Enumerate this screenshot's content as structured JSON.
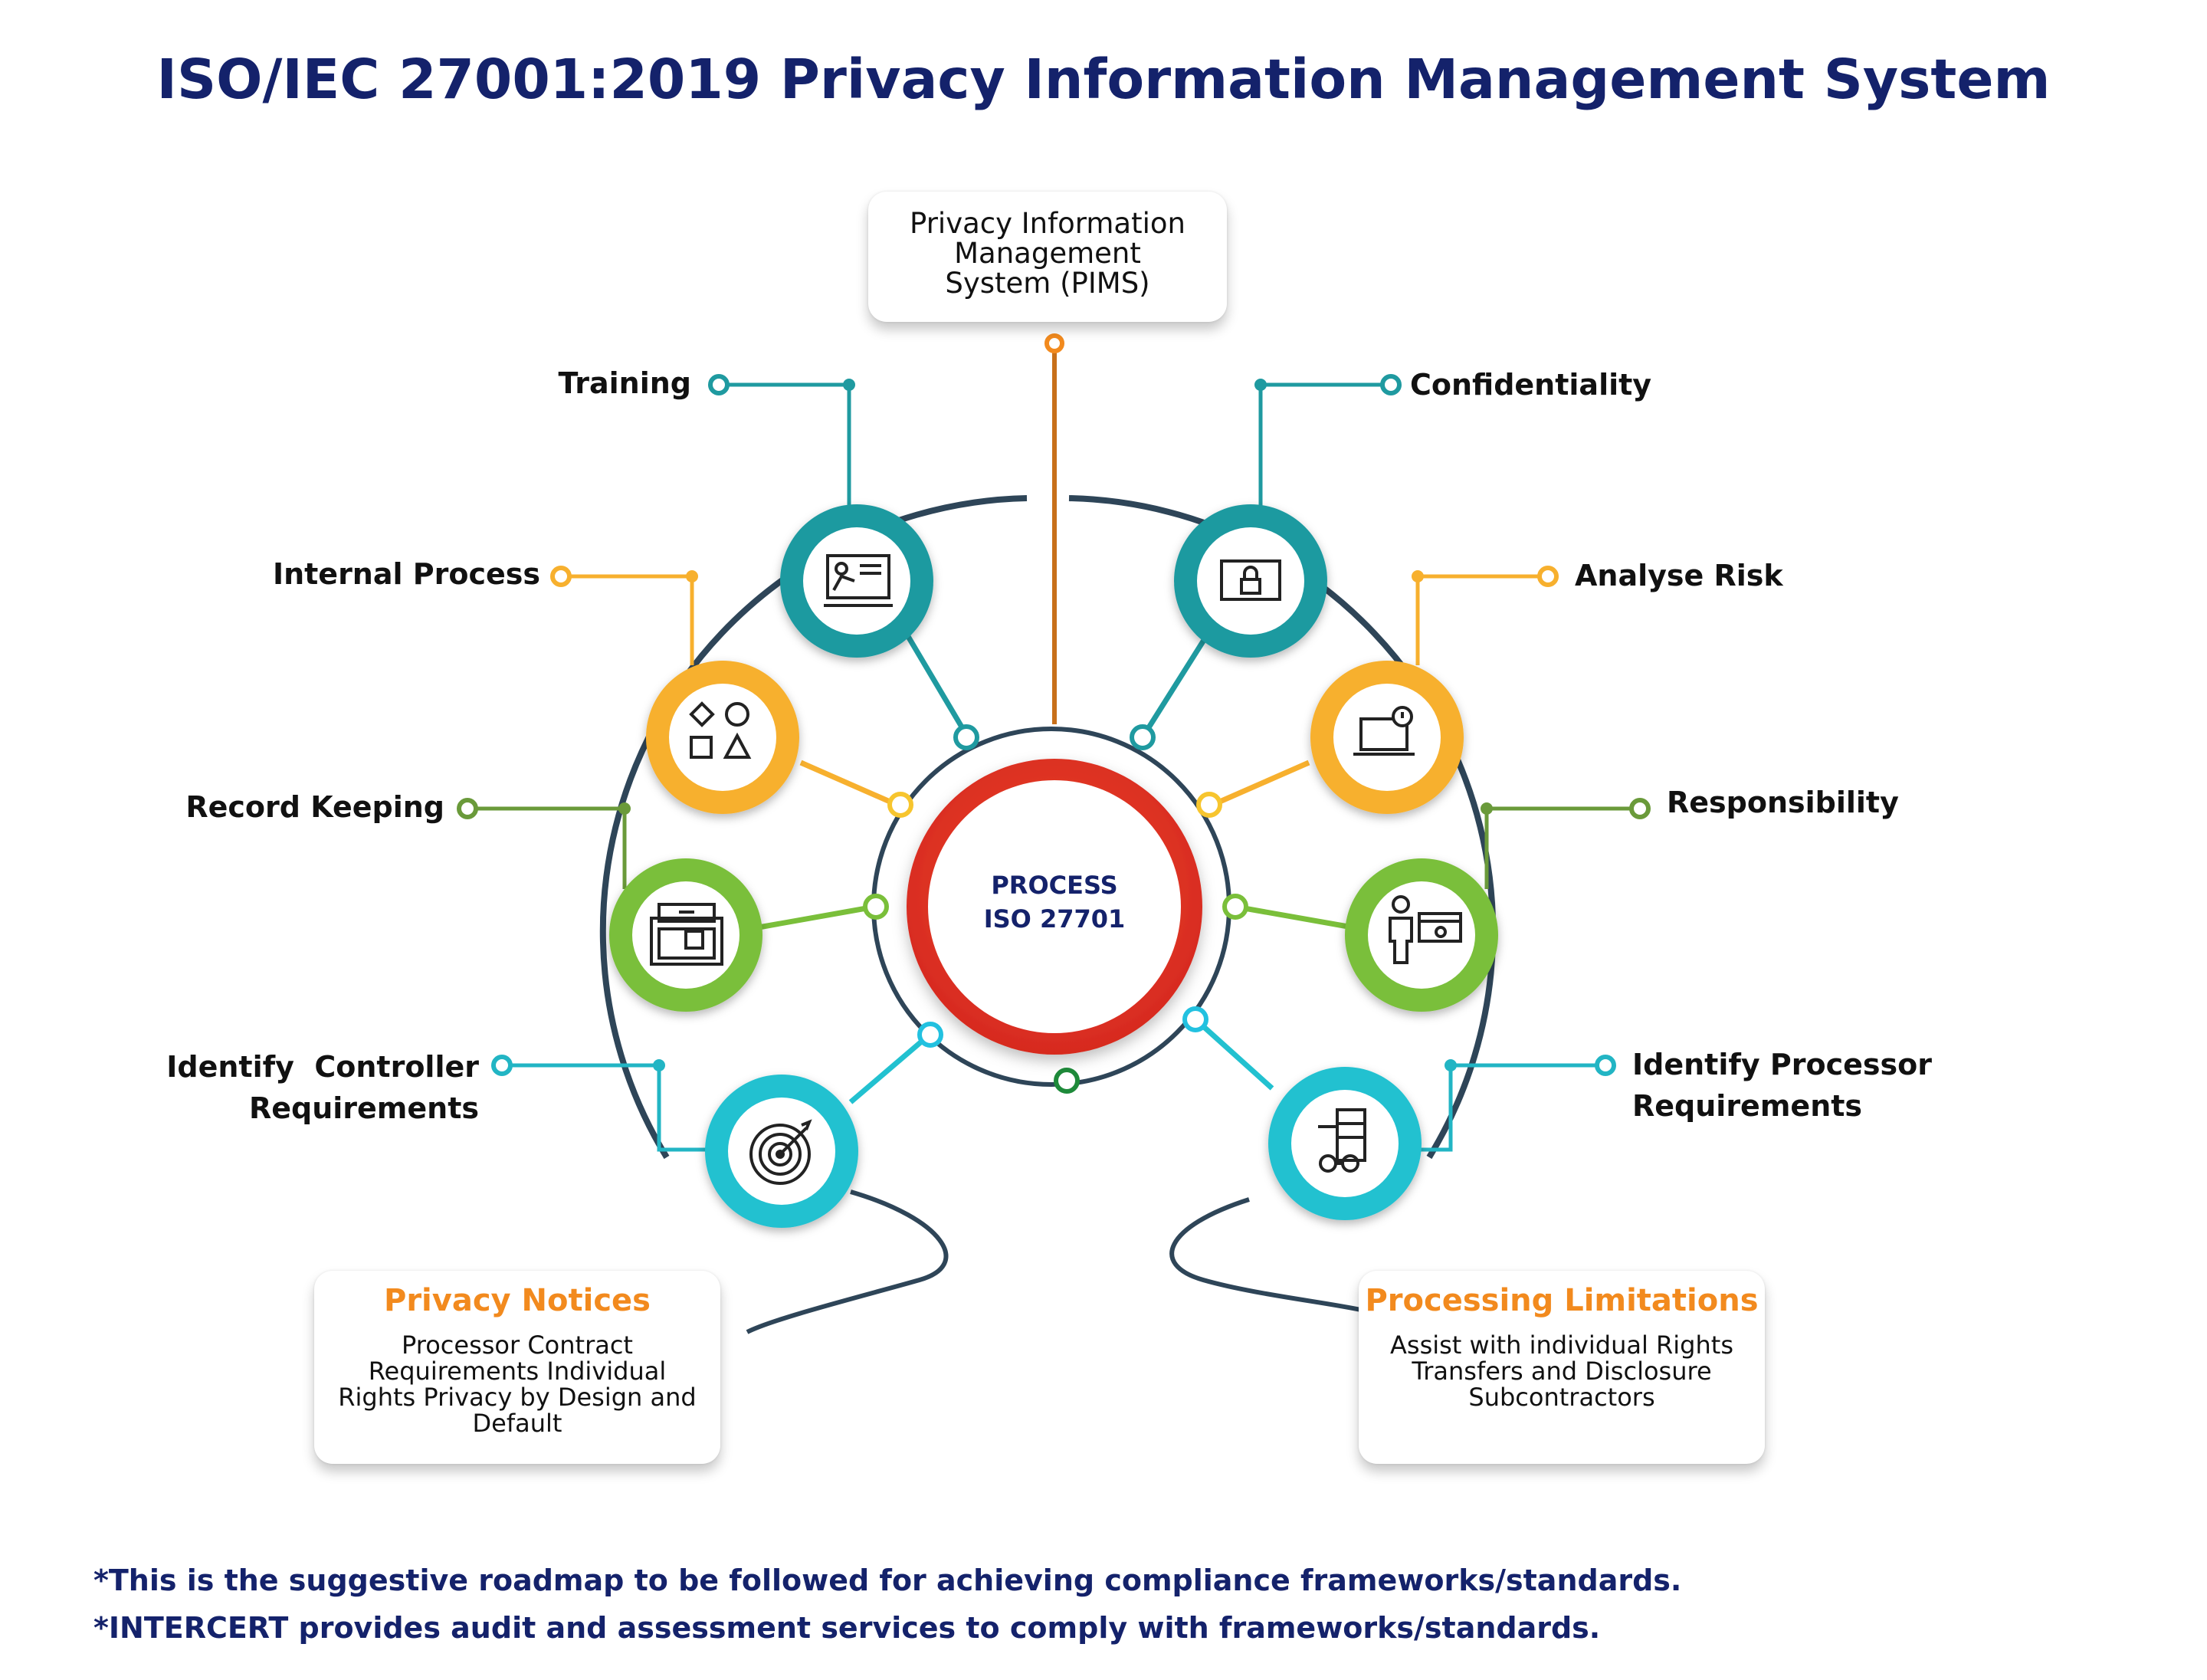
{
  "title": "ISO/IEC 27001:2019 Privacy Information Management System",
  "center": {
    "line1": "PROCESS",
    "line2": "ISO 27701"
  },
  "top_card": {
    "line1": "Privacy Information",
    "line2": "Management",
    "line3": "System (PIMS)"
  },
  "nodes": {
    "training": {
      "label": "Training",
      "color": "#1f9aa0",
      "icon": "presentation-board-icon"
    },
    "confidentiality": {
      "label": "Confidentiality",
      "color": "#1f9aa0",
      "icon": "lock-screen-icon"
    },
    "internal_process": {
      "label": "Internal Process",
      "color": "#f7b02e",
      "icon": "shapes-icon"
    },
    "analyse_risk": {
      "label": "Analyse Risk",
      "color": "#f7b02e",
      "icon": "laptop-alert-icon"
    },
    "record_keeping": {
      "label": "Record Keeping",
      "color": "#7abf3a",
      "icon": "archive-box-icon"
    },
    "responsibility": {
      "label": "Responsibility",
      "color": "#7abf3a",
      "icon": "person-dashboard-icon"
    },
    "identify_controller": {
      "label_line1": "Identify  Controller",
      "label_line2": "Requirements",
      "color": "#22c1d0",
      "icon": "target-icon"
    },
    "identify_processor": {
      "label_line1": "Identify Processor",
      "label_line2": "Requirements",
      "color": "#22c1d0",
      "icon": "server-glasses-icon"
    }
  },
  "cards": {
    "privacy_notices": {
      "heading": "Privacy Notices",
      "lines": [
        "Processor Contract",
        "Requirements Individual",
        "Rights Privacy by Design and",
        "Default"
      ]
    },
    "processing_limitations": {
      "heading": "Processing Limitations",
      "lines": [
        "Assist with individual Rights",
        "Transfers and Disclosure",
        "Subcontractors"
      ]
    }
  },
  "footnotes": {
    "line1": "*This is the suggestive roadmap to be followed for achieving compliance frameworks/standards.",
    "line2": "*INTERCERT provides audit and assessment services to comply with frameworks/standards."
  },
  "colors": {
    "navy": "#14226b",
    "dark_arc": "#2e4558",
    "red_ring": "#e53523",
    "orange_accent": "#f28a1e"
  }
}
